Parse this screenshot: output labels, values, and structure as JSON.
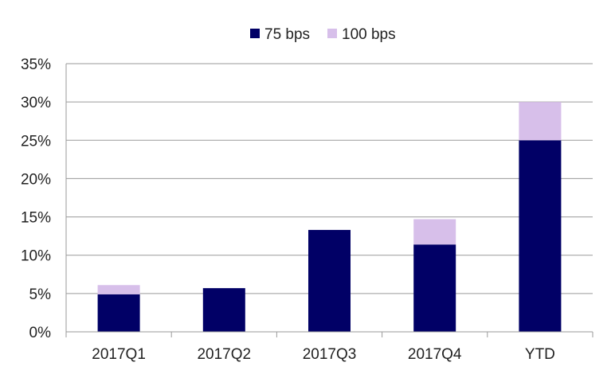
{
  "chart_data": {
    "type": "bar",
    "stacked": true,
    "categories": [
      "2017Q1",
      "2017Q2",
      "2017Q3",
      "2017Q4",
      "YTD"
    ],
    "series": [
      {
        "name": "75 bps",
        "color": "#010066",
        "values": [
          4.9,
          5.7,
          13.3,
          11.4,
          25.0
        ]
      },
      {
        "name": "100 bps",
        "color": "#D7BFEA",
        "values": [
          1.2,
          0.0,
          0.0,
          3.3,
          5.0
        ]
      }
    ],
    "ylim": [
      0,
      35
    ],
    "yticks": [
      0,
      5,
      10,
      15,
      20,
      25,
      30,
      35
    ],
    "ytick_labels": [
      "0%",
      "5%",
      "10%",
      "15%",
      "20%",
      "25%",
      "30%",
      "35%"
    ],
    "grid": true,
    "legend_position": "top-center",
    "title": "",
    "xlabel": "",
    "ylabel": ""
  }
}
